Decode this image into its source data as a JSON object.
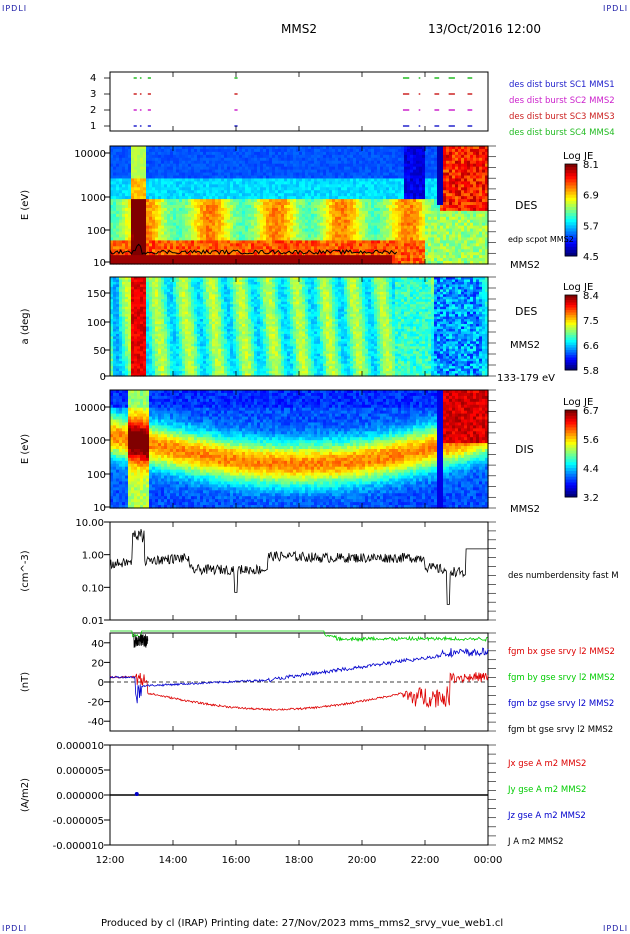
{
  "corners": {
    "tl": "IPDLI",
    "tr": "IPDLI",
    "bl": "IPDLI",
    "br": "IPDLI"
  },
  "header": {
    "spacecraft": "MMS2",
    "datetime": "13/Oct/2016 12:00"
  },
  "footer": {
    "text": "Produced by cl (IRAP)   Printing date: 27/Nov/2023   mms_mms2_srvy_vue_web1.cl"
  },
  "chart_data": [
    {
      "type": "timeline",
      "name": "burst availability",
      "yticks": [
        "4",
        "3",
        "2",
        "1"
      ],
      "legend": [
        {
          "text": "des dist burst SC1 MMS1",
          "color": "#2222cc"
        },
        {
          "text": "des dist burst SC2 MMS2",
          "color": "#cc22cc"
        },
        {
          "text": "des dist burst SC3 MMS3",
          "color": "#cc2222"
        },
        {
          "text": "des dist burst SC4 MMS4",
          "color": "#22bb22"
        }
      ],
      "intervals_hours": [
        [
          12.75,
          12.85
        ],
        [
          12.95,
          13.0
        ],
        [
          13.2,
          13.3
        ],
        [
          15.95,
          16.05
        ],
        [
          21.3,
          21.5
        ],
        [
          21.8,
          21.85
        ],
        [
          22.3,
          22.45
        ],
        [
          22.75,
          22.95
        ],
        [
          23.35,
          23.5
        ]
      ]
    },
    {
      "type": "heatmap",
      "instrument": "DES",
      "ylabel": "E (eV)",
      "yticks": [
        "10000",
        "1000",
        "100",
        "10"
      ],
      "colorbar": {
        "title": "Log JE",
        "ticks": [
          "8.1",
          "6.9",
          "5.7",
          "4.5"
        ]
      },
      "side_labels": [
        "DES",
        "edp scpot MMS2",
        "MMS2"
      ]
    },
    {
      "type": "heatmap",
      "instrument": "DES pitch angle",
      "ylabel": "a (deg)",
      "yticks": [
        "150",
        "100",
        "50",
        "0"
      ],
      "colorbar": {
        "title": "Log JE",
        "ticks": [
          "8.4",
          "7.5",
          "6.6",
          "5.8"
        ]
      },
      "side_labels": [
        "DES",
        "MMS2",
        "133-179 eV"
      ]
    },
    {
      "type": "heatmap",
      "instrument": "DIS",
      "ylabel": "E (eV)",
      "yticks": [
        "10000",
        "1000",
        "100",
        "10"
      ],
      "colorbar": {
        "title": "Log JE",
        "ticks": [
          "6.7",
          "5.6",
          "4.4",
          "3.2"
        ]
      },
      "side_labels": [
        "DIS",
        "MMS2"
      ]
    },
    {
      "type": "line",
      "ylabel": "(cm^-3)",
      "yticks": [
        "10.00",
        "1.00",
        "0.10",
        "0.01"
      ],
      "log": true,
      "ylim": [
        0.01,
        10
      ],
      "series": [
        {
          "name": "des numberdensity fast M",
          "color": "#000000"
        }
      ]
    },
    {
      "type": "line",
      "ylabel": "(nT)",
      "yticks": [
        "40",
        "20",
        "0",
        "-20",
        "-40"
      ],
      "ylim": [
        -50,
        50
      ],
      "series": [
        {
          "name": "fgm bx gse srvy l2 MMS2",
          "color": "#dd0000"
        },
        {
          "name": "fgm by gse srvy l2 MMS2",
          "color": "#00cc00"
        },
        {
          "name": "fgm bz gse srvy l2 MMS2",
          "color": "#0000cc"
        },
        {
          "name": "fgm bt gse srvy l2 MMS2",
          "color": "#000000"
        }
      ]
    },
    {
      "type": "line",
      "ylabel": "(A/m2)",
      "yticks": [
        "0.000010",
        "0.000005",
        "0.000000",
        "-0.000005",
        "-0.000010"
      ],
      "ylim": [
        -1e-05,
        1e-05
      ],
      "series": [
        {
          "name": "Jx gse A m2 MMS2",
          "color": "#dd0000"
        },
        {
          "name": "Jy gse A m2 MMS2",
          "color": "#00cc00"
        },
        {
          "name": "Jz gse A m2 MMS2",
          "color": "#0000cc"
        },
        {
          "name": "J A m2 MMS2",
          "color": "#000000"
        }
      ]
    }
  ],
  "xaxis": {
    "ticks": [
      "12:00",
      "14:00",
      "16:00",
      "18:00",
      "20:00",
      "22:00",
      "00:00"
    ],
    "range_hours": [
      12,
      24
    ]
  }
}
